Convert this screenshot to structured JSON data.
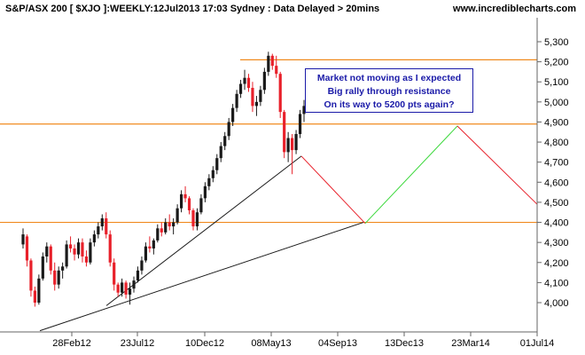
{
  "header": {
    "title": "S&P/ASX 200 [ $XJO ]:WEEKLY:12Jul2013 17:03 Sydney : Data Delayed > 20mins",
    "site": "www.incrediblecharts.com"
  },
  "annotation": [
    "Market not moving as I expected",
    "Big rally through resistance",
    "On its way to 5200 pts again?"
  ],
  "chart_data": {
    "type": "candlestick",
    "y_ticks": [
      4000,
      4100,
      4200,
      4300,
      4400,
      4500,
      4600,
      4700,
      4800,
      4900,
      5000,
      5100,
      5200,
      5300
    ],
    "y_tick_labels": [
      "4,000",
      "4,100",
      "4,200",
      "4,300",
      "4,400",
      "4,500",
      "4,600",
      "4,700",
      "4,800",
      "4,900",
      "5,000",
      "5,100",
      "5,200",
      "5,300"
    ],
    "ylim": [
      3935,
      5330
    ],
    "x_tick_labels": [
      "28Feb12",
      "23Jul12",
      "10Dec12",
      "08May13",
      "04Sep13",
      "13Dec13",
      "23Mar14",
      "01Jul14"
    ],
    "resistance_levels": [
      5210,
      4890,
      4400
    ],
    "series_colors": {
      "up": "#1a1a1a",
      "down": "#e8202a"
    },
    "line_colors": {
      "support": "#f08a1e",
      "trend": "#1a1a1a",
      "projection_down": "#e8202a",
      "projection_up": "#3ad83a"
    },
    "candles": [
      [
        4290,
        4370,
        4270,
        4340
      ],
      [
        4330,
        4340,
        4180,
        4210
      ],
      [
        4210,
        4220,
        4030,
        4060
      ],
      [
        4060,
        4080,
        3980,
        4000
      ],
      [
        4000,
        4140,
        3990,
        4120
      ],
      [
        4120,
        4250,
        4110,
        4230
      ],
      [
        4230,
        4300,
        4200,
        4280
      ],
      [
        4280,
        4290,
        4140,
        4160
      ],
      [
        4160,
        4200,
        4060,
        4090
      ],
      [
        4090,
        4180,
        4070,
        4160
      ],
      [
        4160,
        4200,
        4120,
        4180
      ],
      [
        4180,
        4310,
        4170,
        4290
      ],
      [
        4290,
        4330,
        4250,
        4270
      ],
      [
        4270,
        4290,
        4210,
        4240
      ],
      [
        4240,
        4320,
        4220,
        4300
      ],
      [
        4300,
        4320,
        4200,
        4230
      ],
      [
        4230,
        4260,
        4180,
        4200
      ],
      [
        4200,
        4320,
        4190,
        4300
      ],
      [
        4300,
        4360,
        4280,
        4340
      ],
      [
        4340,
        4400,
        4320,
        4380
      ],
      [
        4380,
        4440,
        4360,
        4420
      ],
      [
        4420,
        4450,
        4320,
        4340
      ],
      [
        4340,
        4360,
        4180,
        4200
      ],
      [
        4200,
        4220,
        4060,
        4090
      ],
      [
        4090,
        4100,
        4030,
        4050
      ],
      [
        4050,
        4120,
        4030,
        4100
      ],
      [
        4100,
        4110,
        4020,
        4040
      ],
      [
        4040,
        4100,
        3990,
        4070
      ],
      [
        4070,
        4130,
        4050,
        4110
      ],
      [
        4110,
        4180,
        4100,
        4160
      ],
      [
        4160,
        4230,
        4140,
        4210
      ],
      [
        4210,
        4300,
        4200,
        4280
      ],
      [
        4280,
        4330,
        4250,
        4270
      ],
      [
        4270,
        4320,
        4240,
        4310
      ],
      [
        4310,
        4390,
        4300,
        4370
      ],
      [
        4370,
        4400,
        4330,
        4350
      ],
      [
        4350,
        4420,
        4340,
        4400
      ],
      [
        4400,
        4440,
        4360,
        4380
      ],
      [
        4380,
        4420,
        4340,
        4400
      ],
      [
        4400,
        4490,
        4390,
        4470
      ],
      [
        4470,
        4560,
        4450,
        4540
      ],
      [
        4540,
        4580,
        4500,
        4520
      ],
      [
        4520,
        4530,
        4440,
        4460
      ],
      [
        4460,
        4470,
        4360,
        4380
      ],
      [
        4380,
        4470,
        4360,
        4450
      ],
      [
        4450,
        4540,
        4440,
        4520
      ],
      [
        4520,
        4600,
        4500,
        4580
      ],
      [
        4580,
        4640,
        4560,
        4620
      ],
      [
        4620,
        4680,
        4600,
        4660
      ],
      [
        4660,
        4740,
        4640,
        4720
      ],
      [
        4720,
        4800,
        4700,
        4780
      ],
      [
        4780,
        4850,
        4760,
        4830
      ],
      [
        4830,
        4920,
        4810,
        4900
      ],
      [
        4900,
        4990,
        4880,
        4970
      ],
      [
        4970,
        5060,
        4950,
        5040
      ],
      [
        5040,
        5110,
        5020,
        5090
      ],
      [
        5090,
        5160,
        5060,
        5120
      ],
      [
        5120,
        5140,
        5050,
        5070
      ],
      [
        5070,
        5100,
        4950,
        4980
      ],
      [
        4980,
        5030,
        4930,
        5000
      ],
      [
        5000,
        5080,
        4980,
        5060
      ],
      [
        5060,
        5170,
        5040,
        5150
      ],
      [
        5150,
        5250,
        5130,
        5230
      ],
      [
        5230,
        5240,
        5160,
        5180
      ],
      [
        5180,
        5230,
        5120,
        5140
      ],
      [
        5140,
        5150,
        4920,
        4950
      ],
      [
        4950,
        4960,
        4720,
        4750
      ],
      [
        4750,
        4850,
        4700,
        4820
      ],
      [
        4820,
        4840,
        4640,
        4760
      ],
      [
        4760,
        4860,
        4740,
        4840
      ],
      [
        4840,
        4960,
        4820,
        4940
      ],
      [
        4940,
        5010,
        4900,
        4980
      ]
    ]
  }
}
